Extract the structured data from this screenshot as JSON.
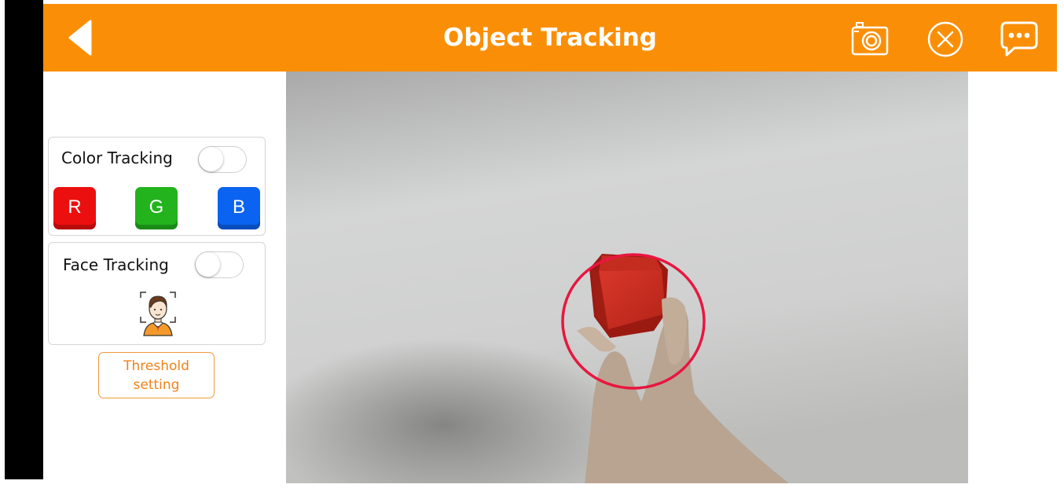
{
  "header": {
    "title": "Object Tracking",
    "background_color": "#fa8f07",
    "back_icon": "back-arrow-icon",
    "camera_icon": "camera-icon",
    "close_icon": "close-circle-icon",
    "message_icon": "chat-bubble-icon"
  },
  "color_tracking": {
    "label": "Color Tracking",
    "enabled": false,
    "buttons": [
      {
        "label": "R",
        "color": "#ec0f0f"
      },
      {
        "label": "G",
        "color": "#22b31d"
      },
      {
        "label": "B",
        "color": "#0b63f1"
      }
    ]
  },
  "face_tracking": {
    "label": "Face Tracking",
    "enabled": false,
    "icon": "face-detection-icon"
  },
  "threshold": {
    "line1": "Threshold",
    "line2": "setting",
    "color": "#f0821a"
  },
  "video": {
    "tracking_marker_color": "#e8163f"
  }
}
